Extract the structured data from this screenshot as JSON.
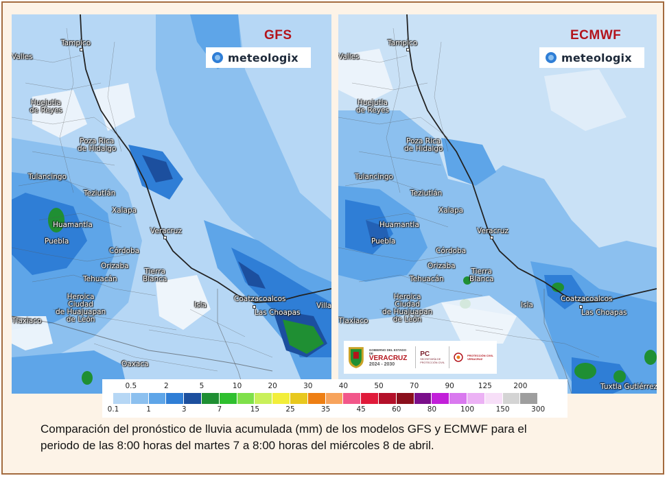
{
  "panels": [
    {
      "id": "gfs",
      "model_title": "GFS",
      "logo_text": "meteologix",
      "cities": [
        {
          "name": "Tampico"
        },
        {
          "name": "Valles"
        },
        {
          "name": "Huejutla\nde Reyes"
        },
        {
          "name": "Poza Rica\nde Hidalgo"
        },
        {
          "name": "Tulancingo"
        },
        {
          "name": "Teziutlán"
        },
        {
          "name": "Xalapa"
        },
        {
          "name": "Huamantla"
        },
        {
          "name": "Puebla"
        },
        {
          "name": "Veracruz"
        },
        {
          "name": "Córdoba"
        },
        {
          "name": "Orizaba"
        },
        {
          "name": "Tierra\nBlanca"
        },
        {
          "name": "Tehuacán"
        },
        {
          "name": "Heroica\nCiudad\nde Huajuapan\nde León"
        },
        {
          "name": "Isla"
        },
        {
          "name": "Coatzacoalcos"
        },
        {
          "name": "Las Choapas"
        },
        {
          "name": "Villa"
        },
        {
          "name": "Oaxaca"
        },
        {
          "name": "Tlaxiaco"
        }
      ]
    },
    {
      "id": "ecmwf",
      "model_title": "ECMWF",
      "logo_text": "meteologix",
      "cities": [
        {
          "name": "Tampico"
        },
        {
          "name": "Valles"
        },
        {
          "name": "Huejutla\nde Reyes"
        },
        {
          "name": "Poza Rica\nde Hidalgo"
        },
        {
          "name": "Tulancingo"
        },
        {
          "name": "Teziutlán"
        },
        {
          "name": "Xalapa"
        },
        {
          "name": "Huamantla"
        },
        {
          "name": "Puebla"
        },
        {
          "name": "Veracruz"
        },
        {
          "name": "Córdoba"
        },
        {
          "name": "Orizaba"
        },
        {
          "name": "Tierra\nBlanca"
        },
        {
          "name": "Tehuacán"
        },
        {
          "name": "Heroica\nCiudad\nde Huajuapan\nde León"
        },
        {
          "name": "Isla"
        },
        {
          "name": "Coatzacoalcos"
        },
        {
          "name": "Las Choapas"
        },
        {
          "name": "Tuxtla Gutiérrez"
        },
        {
          "name": "Tlaxiaco"
        }
      ],
      "gov_logo": {
        "state_line": "GOBIERNO DEL ESTADO DE",
        "state_name": "VERACRUZ",
        "years": "2024 - 2030",
        "pc_title": "PC",
        "pc_sub": "SECRETARÍA DE\nPROTECCIÓN CIVIL",
        "pc_right": "PROTECCIÓN CIVIL\nVERACRUZ"
      }
    }
  ],
  "legend": {
    "unit": "mm",
    "top_labels": [
      "0.5",
      "2",
      "5",
      "10",
      "20",
      "30",
      "40",
      "50",
      "70",
      "90",
      "125",
      "200"
    ],
    "bottom_labels": [
      "0.1",
      "1",
      "3",
      "7",
      "15",
      "25",
      "35",
      "45",
      "60",
      "80",
      "100",
      "150",
      "300"
    ],
    "colors": [
      "#b6d7f5",
      "#8cc0ef",
      "#5ea5e8",
      "#2f7ed6",
      "#1c4f9e",
      "#1f8f33",
      "#2fbf2f",
      "#7fe04a",
      "#c9f05a",
      "#f2ee3a",
      "#e8c81e",
      "#ee7f13",
      "#f7a35c",
      "#f2578a",
      "#e01a3a",
      "#b3102a",
      "#8a0f1c",
      "#7a0f8a",
      "#c21fd9",
      "#d979ef",
      "#ecb2f5",
      "#f7dff8",
      "#d4d4d4",
      "#9e9e9e"
    ]
  },
  "caption": {
    "line1": "Comparación del pronóstico de lluvia acumulada (mm) de los modelos GFS y ECMWF para el",
    "line2": "periodo de las 8:00 horas del martes 7 a 8:00 horas del miércoles 8 de abril."
  }
}
